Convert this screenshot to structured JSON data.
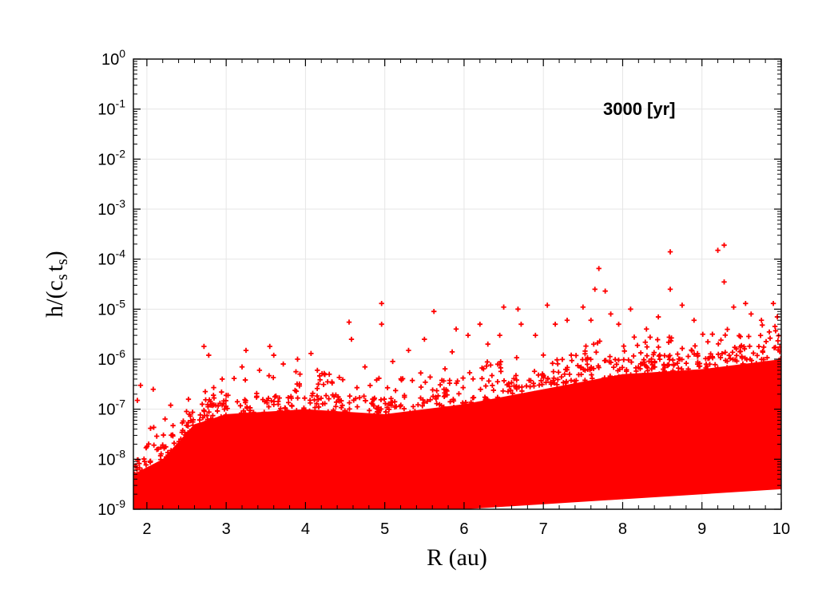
{
  "chart_data": {
    "type": "scatter",
    "title": "",
    "xlabel": "R (au)",
    "ylabel": "h/(c_s t_s)",
    "ylabel_parts": {
      "pre": "h/(c",
      "sub1": "s",
      "mid": "t",
      "sub2": "s",
      "post": ")"
    },
    "annotation": "3000 [yr]",
    "x_scale": "linear",
    "y_scale": "log",
    "xlim": [
      1.83,
      10.0
    ],
    "ylim": [
      1e-09,
      1.0
    ],
    "x_ticks": [
      2,
      3,
      4,
      5,
      6,
      7,
      8,
      9,
      10
    ],
    "y_tick_exponents": [
      -9,
      -8,
      -7,
      -6,
      -5,
      -4,
      -3,
      -2,
      -1,
      0
    ],
    "y_tick_base": "10",
    "grid": true,
    "marker": "+",
    "color": "#ff0000",
    "density_band": {
      "comment_free": true,
      "x": [
        1.83,
        2.2,
        2.6,
        3.0,
        4.0,
        5.0,
        6.0,
        7.0,
        8.0,
        9.0,
        10.0
      ],
      "upper_log10": [
        -8.3,
        -8.0,
        -7.3,
        -7.1,
        -7.0,
        -7.1,
        -6.9,
        -6.6,
        -6.3,
        -6.2,
        -6.0
      ],
      "lower_log10": [
        -9.0,
        -9.0,
        -9.0,
        -9.0,
        -9.0,
        -9.0,
        -9.0,
        -8.9,
        -8.8,
        -8.7,
        -8.6
      ]
    },
    "points": [
      {
        "x": 1.88,
        "y": 1.5e-07
      },
      {
        "x": 1.92,
        "y": 3e-07
      },
      {
        "x": 2.08,
        "y": 2.5e-07
      },
      {
        "x": 2.3,
        "y": 1.2e-07
      },
      {
        "x": 2.5,
        "y": 9e-08
      },
      {
        "x": 2.72,
        "y": 1.8e-06
      },
      {
        "x": 2.78,
        "y": 1.2e-06
      },
      {
        "x": 2.95,
        "y": 4e-07
      },
      {
        "x": 3.2,
        "y": 7e-07
      },
      {
        "x": 3.25,
        "y": 1.5e-06
      },
      {
        "x": 3.42,
        "y": 6e-07
      },
      {
        "x": 3.55,
        "y": 1.8e-06
      },
      {
        "x": 3.6,
        "y": 1.2e-06
      },
      {
        "x": 3.72,
        "y": 8e-07
      },
      {
        "x": 3.9,
        "y": 1e-06
      },
      {
        "x": 4.07,
        "y": 1.3e-06
      },
      {
        "x": 4.15,
        "y": 6e-07
      },
      {
        "x": 4.3,
        "y": 5e-07
      },
      {
        "x": 4.55,
        "y": 5.5e-06
      },
      {
        "x": 4.58,
        "y": 2.5e-06
      },
      {
        "x": 4.75,
        "y": 7e-07
      },
      {
        "x": 4.96,
        "y": 1.3e-05
      },
      {
        "x": 4.96,
        "y": 5e-06
      },
      {
        "x": 5.1,
        "y": 9e-07
      },
      {
        "x": 5.3,
        "y": 1.5e-06
      },
      {
        "x": 5.5,
        "y": 2.5e-06
      },
      {
        "x": 5.62,
        "y": 9e-06
      },
      {
        "x": 5.85,
        "y": 1.4e-06
      },
      {
        "x": 6.05,
        "y": 3e-06
      },
      {
        "x": 6.2,
        "y": 5e-06
      },
      {
        "x": 6.45,
        "y": 3e-06
      },
      {
        "x": 6.5,
        "y": 1.1e-05
      },
      {
        "x": 6.68,
        "y": 1e-05
      },
      {
        "x": 6.72,
        "y": 5e-06
      },
      {
        "x": 6.9,
        "y": 3e-06
      },
      {
        "x": 7.05,
        "y": 1.2e-05
      },
      {
        "x": 7.15,
        "y": 5e-06
      },
      {
        "x": 7.3,
        "y": 6e-06
      },
      {
        "x": 7.5,
        "y": 1.1e-05
      },
      {
        "x": 7.6,
        "y": 6e-06
      },
      {
        "x": 7.65,
        "y": 2.5e-05
      },
      {
        "x": 7.7,
        "y": 6.5e-05
      },
      {
        "x": 7.78,
        "y": 2.3e-05
      },
      {
        "x": 7.85,
        "y": 8e-06
      },
      {
        "x": 7.95,
        "y": 5e-06
      },
      {
        "x": 8.1,
        "y": 1e-05
      },
      {
        "x": 8.3,
        "y": 4e-06
      },
      {
        "x": 8.6,
        "y": 0.00014
      },
      {
        "x": 8.6,
        "y": 2.5e-05
      },
      {
        "x": 8.75,
        "y": 1.2e-05
      },
      {
        "x": 8.9,
        "y": 6e-06
      },
      {
        "x": 9.2,
        "y": 0.00015
      },
      {
        "x": 9.28,
        "y": 0.00019
      },
      {
        "x": 9.28,
        "y": 3.5e-05
      },
      {
        "x": 9.4,
        "y": 1.1e-05
      },
      {
        "x": 9.55,
        "y": 1.3e-05
      },
      {
        "x": 9.62,
        "y": 8e-06
      },
      {
        "x": 9.75,
        "y": 6e-06
      },
      {
        "x": 9.9,
        "y": 1.3e-05
      },
      {
        "x": 9.95,
        "y": 7e-06
      },
      {
        "x": 8.45,
        "y": 7e-06
      },
      {
        "x": 6.3,
        "y": 2e-06
      },
      {
        "x": 5.9,
        "y": 4e-06
      }
    ]
  }
}
